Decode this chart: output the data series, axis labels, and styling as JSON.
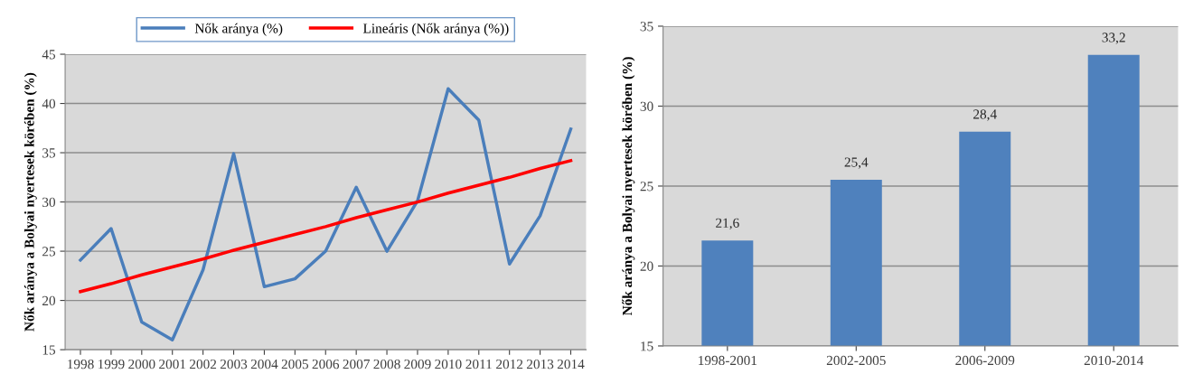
{
  "chart_data": [
    {
      "type": "line",
      "ylabel": "Nők aránya a Bolyai nyertesek körében (%)",
      "categories": [
        "1998",
        "1999",
        "2000",
        "2001",
        "2002",
        "2003",
        "2004",
        "2005",
        "2006",
        "2007",
        "2008",
        "2009",
        "2010",
        "2011",
        "2012",
        "2013",
        "2014"
      ],
      "series": [
        {
          "name": "Nők aránya (%)",
          "color": "#4a7ebb",
          "values": [
            24.1,
            27.3,
            17.8,
            16.0,
            23.1,
            34.9,
            21.4,
            22.2,
            25.0,
            31.5,
            25.0,
            30.1,
            41.5,
            38.3,
            23.7,
            28.6,
            37.4
          ]
        },
        {
          "name": "Lineáris (Nők aránya (%))",
          "color": "#ff0000",
          "values": [
            20.9,
            21.7,
            22.6,
            23.4,
            24.2,
            25.1,
            25.9,
            26.7,
            27.5,
            28.4,
            29.2,
            30.0,
            30.9,
            31.7,
            32.5,
            33.4,
            34.2
          ]
        }
      ],
      "ylim": [
        15,
        45
      ],
      "yticks": [
        15,
        20,
        25,
        30,
        35,
        40,
        45
      ],
      "grid": "y",
      "legend": "top",
      "marker": "none",
      "line_style": "solid"
    },
    {
      "type": "bar",
      "ylabel": "Nők aránya a Bolyai nyertesek körében (%)",
      "categories": [
        "1998-2001",
        "2002-2005",
        "2006-2009",
        "2010-2014"
      ],
      "values": [
        21.6,
        25.4,
        28.4,
        33.2
      ],
      "value_labels": [
        "21,6",
        "25,4",
        "28,4",
        "33,2"
      ],
      "color": "#4f81bd",
      "ylim": [
        15,
        35
      ],
      "yticks": [
        15,
        20,
        25,
        30,
        35
      ],
      "grid": "y"
    }
  ]
}
